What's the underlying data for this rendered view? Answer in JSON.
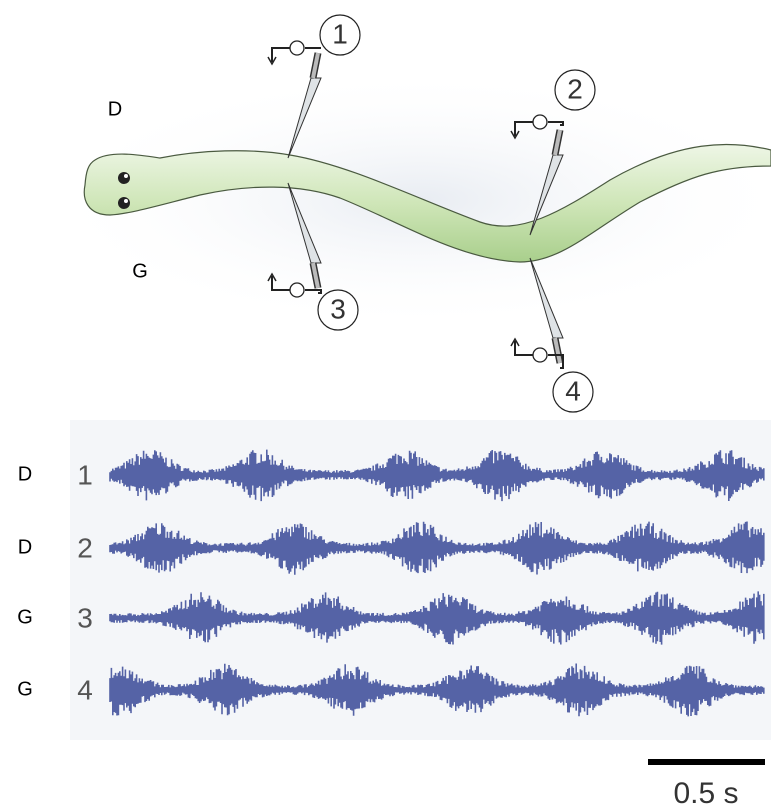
{
  "animal": {
    "dorsal_label": "D",
    "ventral_label": "G",
    "electrodes": [
      {
        "number": "1"
      },
      {
        "number": "2"
      },
      {
        "number": "3"
      },
      {
        "number": "4"
      }
    ]
  },
  "recordings": [
    {
      "side": "D",
      "number": "1"
    },
    {
      "side": "D",
      "number": "2"
    },
    {
      "side": "G",
      "number": "3"
    },
    {
      "side": "G",
      "number": "4"
    }
  ],
  "scale_bar": {
    "label": "0.5 s"
  }
}
